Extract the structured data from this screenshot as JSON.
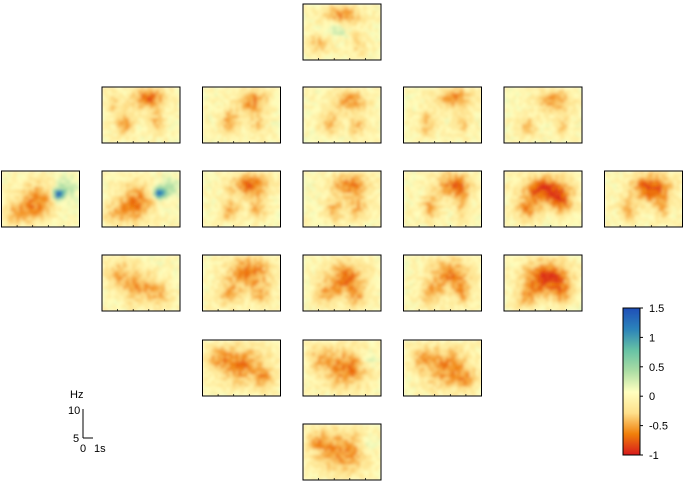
{
  "chart_data": {
    "type": "heatmap",
    "title": "",
    "description_rows": "Topographic array of 23 time-frequency panels arranged by channel layout (rows of 1, 5, 7, 5, 3, 1 panels)",
    "rows": [
      1,
      5,
      7,
      5,
      3,
      1
    ],
    "panels": [
      {
        "row": 0,
        "col": 0,
        "blobs": [
          [
            0.5,
            0.2,
            0.25,
            0.2,
            -0.6
          ],
          [
            0.2,
            0.7,
            0.15,
            0.2,
            -0.4
          ],
          [
            0.7,
            0.7,
            0.1,
            0.2,
            -0.35
          ],
          [
            0.4,
            0.45,
            0.2,
            0.15,
            0.35
          ]
        ]
      },
      {
        "row": 1,
        "col": 0,
        "blobs": [
          [
            0.6,
            0.2,
            0.22,
            0.2,
            -0.7
          ],
          [
            0.3,
            0.65,
            0.12,
            0.22,
            -0.5
          ],
          [
            0.7,
            0.65,
            0.1,
            0.2,
            -0.4
          ],
          [
            0.15,
            0.3,
            0.1,
            0.2,
            -0.3
          ]
        ]
      },
      {
        "row": 1,
        "col": 1,
        "blobs": [
          [
            0.65,
            0.25,
            0.2,
            0.2,
            -0.6
          ],
          [
            0.35,
            0.6,
            0.12,
            0.22,
            -0.55
          ],
          [
            0.7,
            0.65,
            0.1,
            0.2,
            -0.35
          ]
        ]
      },
      {
        "row": 1,
        "col": 2,
        "blobs": [
          [
            0.6,
            0.25,
            0.22,
            0.2,
            -0.55
          ],
          [
            0.35,
            0.65,
            0.12,
            0.2,
            -0.45
          ],
          [
            0.7,
            0.7,
            0.1,
            0.2,
            -0.4
          ]
        ]
      },
      {
        "row": 1,
        "col": 3,
        "blobs": [
          [
            0.65,
            0.2,
            0.22,
            0.2,
            -0.6
          ],
          [
            0.3,
            0.65,
            0.12,
            0.22,
            -0.45
          ],
          [
            0.75,
            0.65,
            0.1,
            0.2,
            -0.35
          ]
        ]
      },
      {
        "row": 1,
        "col": 4,
        "blobs": [
          [
            0.65,
            0.25,
            0.22,
            0.2,
            -0.55
          ],
          [
            0.3,
            0.7,
            0.12,
            0.2,
            -0.4
          ],
          [
            0.75,
            0.7,
            0.1,
            0.2,
            -0.3
          ]
        ]
      },
      {
        "row": 2,
        "col": 0,
        "blobs": [
          [
            0.45,
            0.55,
            0.22,
            0.35,
            -0.6
          ],
          [
            0.2,
            0.75,
            0.18,
            0.2,
            -0.4
          ],
          [
            0.73,
            0.42,
            0.07,
            0.1,
            1.5
          ],
          [
            0.85,
            0.3,
            0.12,
            0.2,
            0.4
          ]
        ]
      },
      {
        "row": 2,
        "col": 1,
        "blobs": [
          [
            0.45,
            0.55,
            0.22,
            0.35,
            -0.6
          ],
          [
            0.2,
            0.75,
            0.18,
            0.2,
            -0.4
          ],
          [
            0.73,
            0.4,
            0.07,
            0.1,
            1.3
          ],
          [
            0.85,
            0.3,
            0.12,
            0.2,
            0.4
          ]
        ]
      },
      {
        "row": 2,
        "col": 2,
        "blobs": [
          [
            0.6,
            0.25,
            0.25,
            0.2,
            -0.7
          ],
          [
            0.35,
            0.7,
            0.12,
            0.2,
            -0.5
          ],
          [
            0.7,
            0.65,
            0.12,
            0.22,
            -0.45
          ]
        ]
      },
      {
        "row": 2,
        "col": 3,
        "blobs": [
          [
            0.6,
            0.25,
            0.25,
            0.2,
            -0.65
          ],
          [
            0.4,
            0.7,
            0.12,
            0.2,
            -0.45
          ],
          [
            0.7,
            0.65,
            0.12,
            0.22,
            -0.45
          ]
        ]
      },
      {
        "row": 2,
        "col": 4,
        "blobs": [
          [
            0.65,
            0.25,
            0.22,
            0.22,
            -0.7
          ],
          [
            0.35,
            0.65,
            0.12,
            0.22,
            -0.5
          ],
          [
            0.75,
            0.6,
            0.1,
            0.25,
            -0.4
          ]
        ]
      },
      {
        "row": 2,
        "col": 5,
        "blobs": [
          [
            0.55,
            0.35,
            0.3,
            0.25,
            -0.9
          ],
          [
            0.3,
            0.7,
            0.15,
            0.2,
            -0.5
          ],
          [
            0.75,
            0.6,
            0.12,
            0.22,
            -0.5
          ]
        ]
      },
      {
        "row": 2,
        "col": 6,
        "blobs": [
          [
            0.6,
            0.3,
            0.25,
            0.25,
            -0.85
          ],
          [
            0.3,
            0.7,
            0.12,
            0.2,
            -0.45
          ],
          [
            0.75,
            0.65,
            0.1,
            0.2,
            -0.4
          ]
        ]
      },
      {
        "row": 3,
        "col": 0,
        "blobs": [
          [
            0.45,
            0.55,
            0.22,
            0.3,
            -0.55
          ],
          [
            0.2,
            0.3,
            0.15,
            0.25,
            -0.35
          ],
          [
            0.75,
            0.7,
            0.15,
            0.2,
            -0.4
          ]
        ]
      },
      {
        "row": 3,
        "col": 1,
        "blobs": [
          [
            0.6,
            0.3,
            0.28,
            0.28,
            -0.65
          ],
          [
            0.35,
            0.7,
            0.15,
            0.22,
            -0.5
          ],
          [
            0.75,
            0.7,
            0.12,
            0.2,
            -0.45
          ]
        ]
      },
      {
        "row": 3,
        "col": 2,
        "blobs": [
          [
            0.55,
            0.4,
            0.25,
            0.3,
            -0.65
          ],
          [
            0.3,
            0.7,
            0.15,
            0.2,
            -0.45
          ],
          [
            0.7,
            0.75,
            0.12,
            0.2,
            -0.4
          ]
        ]
      },
      {
        "row": 3,
        "col": 3,
        "blobs": [
          [
            0.6,
            0.35,
            0.25,
            0.28,
            -0.65
          ],
          [
            0.35,
            0.7,
            0.14,
            0.22,
            -0.45
          ],
          [
            0.75,
            0.7,
            0.1,
            0.2,
            -0.4
          ]
        ]
      },
      {
        "row": 3,
        "col": 4,
        "blobs": [
          [
            0.55,
            0.4,
            0.28,
            0.3,
            -0.9
          ],
          [
            0.3,
            0.75,
            0.15,
            0.2,
            -0.45
          ],
          [
            0.75,
            0.7,
            0.12,
            0.2,
            -0.45
          ]
        ]
      },
      {
        "row": 4,
        "col": 0,
        "blobs": [
          [
            0.5,
            0.45,
            0.32,
            0.35,
            -0.6
          ],
          [
            0.2,
            0.3,
            0.15,
            0.2,
            -0.35
          ],
          [
            0.8,
            0.7,
            0.12,
            0.2,
            -0.4
          ]
        ]
      },
      {
        "row": 4,
        "col": 1,
        "blobs": [
          [
            0.55,
            0.5,
            0.3,
            0.35,
            -0.65
          ],
          [
            0.2,
            0.3,
            0.15,
            0.2,
            -0.35
          ],
          [
            0.85,
            0.35,
            0.1,
            0.15,
            0.35
          ]
        ]
      },
      {
        "row": 4,
        "col": 2,
        "blobs": [
          [
            0.55,
            0.5,
            0.3,
            0.35,
            -0.6
          ],
          [
            0.25,
            0.3,
            0.15,
            0.2,
            -0.35
          ],
          [
            0.8,
            0.7,
            0.12,
            0.2,
            -0.35
          ]
        ]
      },
      {
        "row": 5,
        "col": 0,
        "blobs": [
          [
            0.5,
            0.5,
            0.32,
            0.38,
            -0.6
          ],
          [
            0.2,
            0.3,
            0.15,
            0.2,
            -0.35
          ],
          [
            0.85,
            0.35,
            0.1,
            0.15,
            0.35
          ]
        ]
      }
    ],
    "colorbar": {
      "ticks": [
        "1.5",
        "1",
        "0.5",
        "0",
        "-0.5",
        "-1"
      ],
      "tick_values": [
        1.5,
        1,
        0.5,
        0,
        -0.5,
        -1
      ],
      "range": [
        -1,
        1.5
      ],
      "colormap": [
        "#d7191c",
        "#f0800a",
        "#fee08b",
        "#ffffbf",
        "#abdda4",
        "#66c2a5",
        "#2b83ba",
        "#1f4fb8"
      ]
    },
    "scale_bar": {
      "y_axis_label": "Hz",
      "y_top": "10",
      "y_bottom": "5",
      "x_start": "0",
      "x_end": "1s"
    }
  }
}
